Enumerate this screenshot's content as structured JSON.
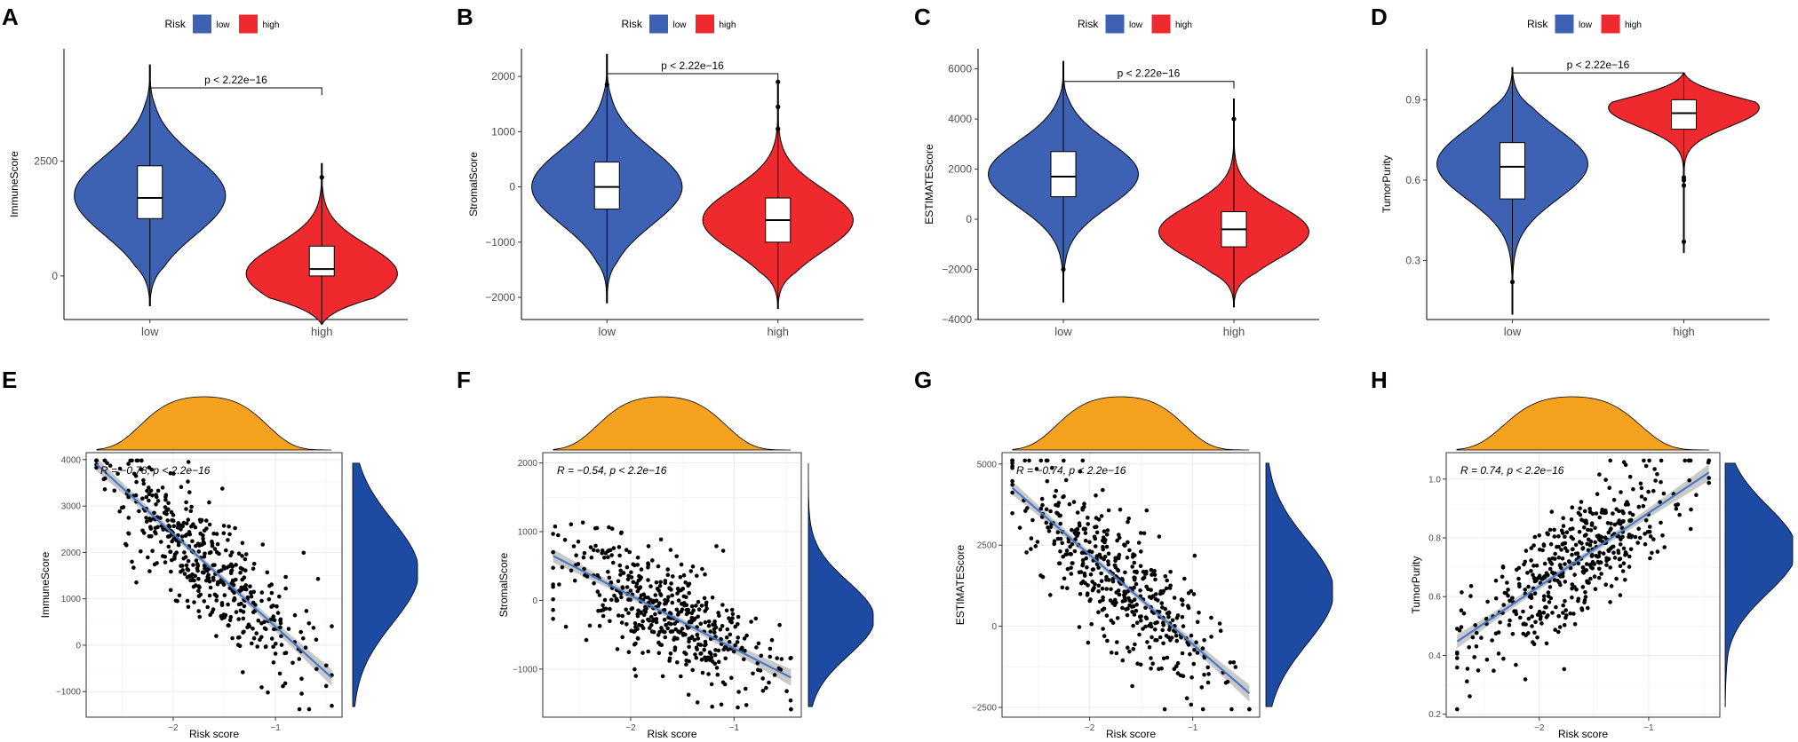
{
  "colors": {
    "low": "#3D62B3",
    "high": "#EE2A2F",
    "density_top": "#F4A21F",
    "density_side": "#1D4AA3",
    "fit_line": "#4A78C4",
    "ci_band": "#B7B7B7",
    "point": "#000000",
    "grid": "#EBEBEB"
  },
  "legend": {
    "title": "Risk",
    "entries": [
      {
        "key": "low",
        "label": "low"
      },
      {
        "key": "high",
        "label": "high"
      }
    ]
  },
  "chart_data": [
    {
      "type": "violin",
      "panel": "A",
      "ylabel": "ImmuneScore",
      "categories": [
        "low",
        "high"
      ],
      "category_labels": [
        "low",
        "high"
      ],
      "ylim": [
        -950,
        4950
      ],
      "yticks": [
        0,
        2500
      ],
      "ytick_labels": [
        "0",
        "2500"
      ],
      "annotation": "p < 2.22e−16",
      "bracket_y": 4100,
      "groups": {
        "low": {
          "q1": 1250,
          "median": 1700,
          "q3": 2400,
          "min": -650,
          "max": 4600,
          "peak": 1750,
          "spread": 850,
          "halfwidth": 0.44
        },
        "high": {
          "q1": 0,
          "median": 150,
          "q3": 650,
          "min": -1050,
          "max": 2450,
          "peak": 50,
          "spread": 620,
          "halfwidth": 0.44,
          "outliers": [
            2150
          ]
        }
      }
    },
    {
      "type": "violin",
      "panel": "B",
      "ylabel": "StromalScore",
      "categories": [
        "low",
        "high"
      ],
      "category_labels": [
        "low",
        "high"
      ],
      "ylim": [
        -2400,
        2500
      ],
      "yticks": [
        -2000,
        -1000,
        0,
        1000,
        2000
      ],
      "ytick_labels": [
        "−2000",
        "−1000",
        "0",
        "1000",
        "2000"
      ],
      "annotation": "p < 2.22e−16",
      "bracket_y": 2050,
      "groups": {
        "low": {
          "q1": -400,
          "median": 0,
          "q3": 450,
          "min": -2100,
          "max": 2400,
          "peak": 0,
          "spread": 680,
          "halfwidth": 0.44,
          "outliers": [
            1850
          ]
        },
        "high": {
          "q1": -1000,
          "median": -600,
          "q3": -200,
          "min": -2200,
          "max": 1850,
          "peak": -600,
          "spread": 560,
          "halfwidth": 0.44,
          "outliers": [
            1900,
            1450,
            1050
          ]
        }
      }
    },
    {
      "type": "violin",
      "panel": "C",
      "ylabel": "ESTIMATEScore",
      "categories": [
        "low",
        "high"
      ],
      "category_labels": [
        "low",
        "high"
      ],
      "ylim": [
        -4000,
        6800
      ],
      "yticks": [
        -4000,
        -2000,
        0,
        2000,
        4000,
        6000
      ],
      "ytick_labels": [
        "−4000",
        "−2000",
        "0",
        "2000",
        "4000",
        "6000"
      ],
      "annotation": "p < 2.22e−16",
      "bracket_y": 5500,
      "groups": {
        "low": {
          "q1": 900,
          "median": 1700,
          "q3": 2700,
          "min": -3300,
          "max": 6300,
          "peak": 1800,
          "spread": 1300,
          "halfwidth": 0.44,
          "outliers": [
            -2000
          ]
        },
        "high": {
          "q1": -1100,
          "median": -400,
          "q3": 300,
          "min": -3500,
          "max": 4800,
          "peak": -500,
          "spread": 1050,
          "halfwidth": 0.44,
          "outliers": [
            4000
          ]
        }
      }
    },
    {
      "type": "violin",
      "panel": "D",
      "ylabel": "TumorPurity",
      "categories": [
        "low",
        "high"
      ],
      "category_labels": [
        "low",
        "high"
      ],
      "ylim": [
        0.08,
        1.09
      ],
      "yticks": [
        0.3,
        0.6,
        0.9
      ],
      "ytick_labels": [
        "0.3",
        "0.6",
        "0.9"
      ],
      "annotation": "p < 2.22e−16",
      "bracket_y": 1.0,
      "groups": {
        "low": {
          "q1": 0.53,
          "median": 0.65,
          "q3": 0.74,
          "min": 0.1,
          "max": 1.02,
          "peak": 0.66,
          "spread": 0.13,
          "halfwidth": 0.44,
          "outliers": [
            0.22
          ]
        },
        "high": {
          "q1": 0.79,
          "median": 0.85,
          "q3": 0.9,
          "min": 0.33,
          "max": 1.0,
          "peak": 0.87,
          "spread": 0.07,
          "halfwidth": 0.44,
          "outliers": [
            0.61,
            0.6,
            0.58,
            0.37
          ]
        }
      }
    },
    {
      "type": "scatter",
      "panel": "E",
      "xlabel": "Risk score",
      "ylabel": "ImmuneScore",
      "xlim": [
        -2.85,
        -0.35
      ],
      "ylim": [
        -1550,
        4150
      ],
      "xticks": [
        -2,
        -1
      ],
      "xtick_labels": [
        "−2",
        "−1"
      ],
      "yticks": [
        -1000,
        0,
        1000,
        2000,
        3000,
        4000
      ],
      "ytick_labels": [
        "−1000",
        "0",
        "1000",
        "2000",
        "3000",
        "4000"
      ],
      "annotation": "R = −0.78, p < 2.2e−16",
      "regression": {
        "slope": -2000,
        "intercept": -1600
      },
      "x_mean": -1.7,
      "x_sd": 0.47,
      "y_sd": 1000,
      "n_points": 470,
      "seed": 11
    },
    {
      "type": "scatter",
      "panel": "F",
      "xlabel": "Risk score",
      "ylabel": "StromalScore",
      "xlim": [
        -2.85,
        -0.35
      ],
      "ylim": [
        -1700,
        2150
      ],
      "xticks": [
        -2,
        -1
      ],
      "xtick_labels": [
        "−2",
        "−1"
      ],
      "yticks": [
        -1000,
        0,
        1000,
        2000
      ],
      "ytick_labels": [
        "−1000",
        "0",
        "1000",
        "2000"
      ],
      "annotation": "R = −0.54, p < 2.2e−16",
      "regression": {
        "slope": -770,
        "intercept": -1470
      },
      "x_mean": -1.7,
      "x_sd": 0.47,
      "y_sd": 660,
      "n_points": 470,
      "seed": 23
    },
    {
      "type": "scatter",
      "panel": "G",
      "xlabel": "Risk score",
      "ylabel": "ESTIMATEScore",
      "xlim": [
        -2.85,
        -0.35
      ],
      "ylim": [
        -2800,
        5350
      ],
      "xticks": [
        -2,
        -1
      ],
      "xtick_labels": [
        "−2",
        "−1"
      ],
      "yticks": [
        -2500,
        0,
        2500,
        5000
      ],
      "ytick_labels": [
        "−2500",
        "0",
        "2500",
        "5000"
      ],
      "annotation": "R = −0.74, p < 2.2e−16",
      "regression": {
        "slope": -2750,
        "intercept": -3300
      },
      "x_mean": -1.7,
      "x_sd": 0.47,
      "y_sd": 1600,
      "n_points": 470,
      "seed": 37
    },
    {
      "type": "scatter",
      "panel": "H",
      "xlabel": "Risk score",
      "ylabel": "TumorPurity",
      "xlim": [
        -2.85,
        -0.35
      ],
      "ylim": [
        0.19,
        1.09
      ],
      "xticks": [
        -2,
        -1
      ],
      "xtick_labels": [
        "−2",
        "−1"
      ],
      "yticks": [
        0.2,
        0.4,
        0.6,
        0.8,
        1.0
      ],
      "ytick_labels": [
        "0.2",
        "0.4",
        "0.6",
        "0.8",
        "1.0"
      ],
      "annotation": "R = 0.74, p < 2.2e−16",
      "regression": {
        "slope": 0.25,
        "intercept": 1.135
      },
      "x_mean": -1.7,
      "x_sd": 0.47,
      "y_sd": 0.16,
      "n_points": 470,
      "seed": 53
    }
  ]
}
